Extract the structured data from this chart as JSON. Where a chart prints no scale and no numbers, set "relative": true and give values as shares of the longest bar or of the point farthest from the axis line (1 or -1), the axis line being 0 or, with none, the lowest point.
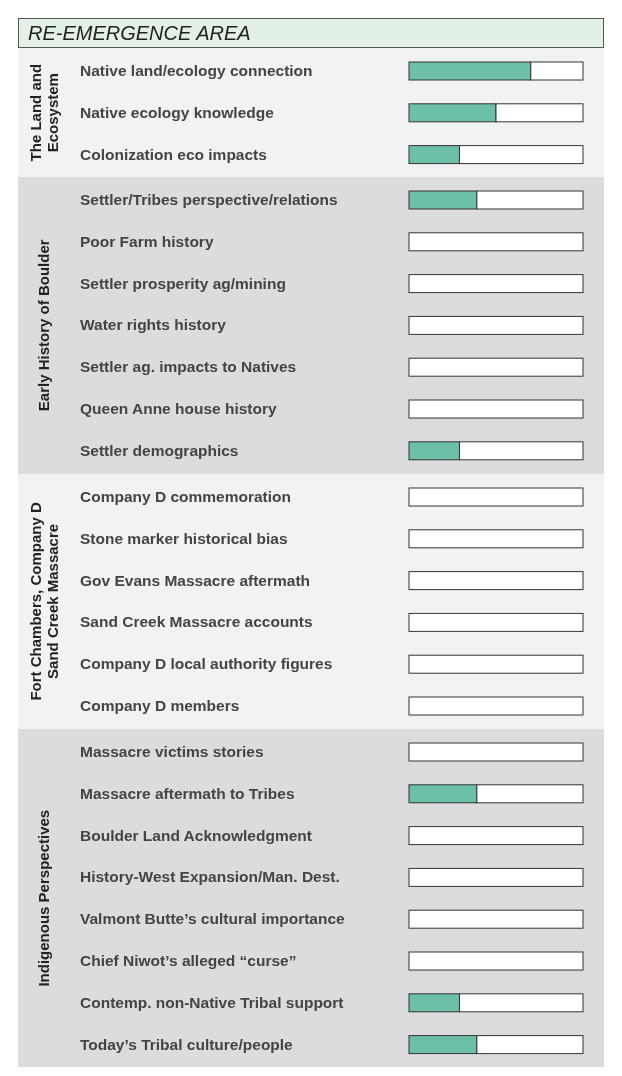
{
  "chart_data": [
    {
      "type": "bar",
      "orientation": "horizontal",
      "relative": true,
      "stacked": true,
      "title": "RE-EMERGENCE AREA",
      "ylabel": "The Land and\nEcosystem",
      "categories": [
        "Native land/ecology connection",
        "Native ecology knowledge",
        "Colonization eco impacts"
      ],
      "series": [
        {
          "color": "#6cbfa9",
          "values": [
            0.7,
            0.5,
            0.29
          ]
        },
        {
          "color": "#ffffff",
          "values": [
            0.3,
            0.5,
            0.71
          ]
        }
      ]
    },
    {
      "type": "bar",
      "orientation": "horizontal",
      "relative": true,
      "stacked": true,
      "ylabel": "Early History of Boulder",
      "categories": [
        "Settler/Tribes perspective/relations",
        "Poor Farm history",
        "Settler prosperity ag/mining",
        "Water rights history",
        "Settler ag. impacts to Natives",
        "Queen Anne house history",
        "Settler demographics"
      ],
      "series": [
        {
          "color": "#6cbfa9",
          "values": [
            0.39,
            0,
            0,
            0,
            0,
            0,
            0.29
          ]
        },
        {
          "color": "#ffffff",
          "values": [
            0.61,
            1,
            1,
            1,
            1,
            1,
            0.71
          ]
        }
      ]
    },
    {
      "type": "bar",
      "orientation": "horizontal",
      "relative": true,
      "stacked": true,
      "ylabel": "Fort Chambers, Company D\nSand Creek Massacre",
      "categories": [
        "Company D commemoration",
        "Stone marker historical bias",
        "Gov Evans Massacre aftermath",
        "Sand Creek Massacre accounts",
        "Company D local authority figures",
        "Company D members"
      ],
      "series": [
        {
          "color": "#6cbfa9",
          "values": [
            0,
            0,
            0,
            0,
            0,
            0
          ]
        },
        {
          "color": "#ffffff",
          "values": [
            1,
            1,
            1,
            1,
            1,
            1
          ]
        }
      ]
    },
    {
      "type": "bar",
      "orientation": "horizontal",
      "relative": true,
      "stacked": true,
      "ylabel": "Indigenous Perspectives",
      "categories": [
        "Massacre victims stories",
        "Massacre aftermath to Tribes",
        "Boulder Land Acknowledgment",
        "History-West Expansion/Man. Dest.",
        "Valmont Butte’s cultural importance",
        "Chief Niwot’s alleged “curse”",
        "Contemp. non-Native Tribal support",
        "Today’s Tribal culture/people"
      ],
      "series": [
        {
          "color": "#6cbfa9",
          "values": [
            0,
            0.39,
            0,
            0,
            0,
            0,
            0.29,
            0.39
          ]
        },
        {
          "color": "#ffffff",
          "values": [
            1,
            0.61,
            1,
            1,
            1,
            1,
            0.71,
            0.61
          ]
        }
      ]
    }
  ]
}
